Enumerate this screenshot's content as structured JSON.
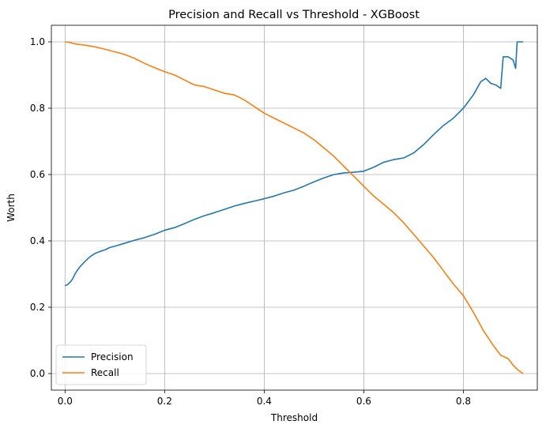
{
  "chart_data": {
    "type": "line",
    "title": "Precision and Recall vs Threshold - XGBoost",
    "xlabel": "Threshold",
    "ylabel": "Worth",
    "xlim": [
      -0.0275,
      0.9485
    ],
    "ylim": [
      -0.05,
      1.05
    ],
    "x_ticks": [
      0.0,
      0.2,
      0.4,
      0.6,
      0.8
    ],
    "x_tick_labels": [
      "0.0",
      "0.2",
      "0.4",
      "0.6",
      "0.8"
    ],
    "y_ticks": [
      0.0,
      0.2,
      0.4,
      0.6,
      0.8,
      1.0
    ],
    "y_tick_labels": [
      "0.0",
      "0.2",
      "0.4",
      "0.6",
      "0.8",
      "1.0"
    ],
    "grid": true,
    "legend_position": "lower-left",
    "series": [
      {
        "name": "Precision",
        "color": "#1f77b4",
        "points": [
          [
            0.0,
            0.265
          ],
          [
            0.005,
            0.268
          ],
          [
            0.01,
            0.275
          ],
          [
            0.015,
            0.285
          ],
          [
            0.02,
            0.3
          ],
          [
            0.025,
            0.312
          ],
          [
            0.03,
            0.322
          ],
          [
            0.04,
            0.338
          ],
          [
            0.05,
            0.352
          ],
          [
            0.06,
            0.362
          ],
          [
            0.07,
            0.368
          ],
          [
            0.08,
            0.373
          ],
          [
            0.09,
            0.38
          ],
          [
            0.1,
            0.384
          ],
          [
            0.12,
            0.393
          ],
          [
            0.14,
            0.402
          ],
          [
            0.16,
            0.41
          ],
          [
            0.18,
            0.42
          ],
          [
            0.2,
            0.432
          ],
          [
            0.22,
            0.44
          ],
          [
            0.24,
            0.452
          ],
          [
            0.26,
            0.465
          ],
          [
            0.28,
            0.476
          ],
          [
            0.3,
            0.485
          ],
          [
            0.32,
            0.495
          ],
          [
            0.34,
            0.505
          ],
          [
            0.36,
            0.513
          ],
          [
            0.38,
            0.52
          ],
          [
            0.4,
            0.527
          ],
          [
            0.42,
            0.535
          ],
          [
            0.44,
            0.545
          ],
          [
            0.46,
            0.553
          ],
          [
            0.48,
            0.565
          ],
          [
            0.5,
            0.578
          ],
          [
            0.52,
            0.59
          ],
          [
            0.54,
            0.6
          ],
          [
            0.56,
            0.605
          ],
          [
            0.58,
            0.607
          ],
          [
            0.6,
            0.61
          ],
          [
            0.62,
            0.622
          ],
          [
            0.64,
            0.637
          ],
          [
            0.66,
            0.645
          ],
          [
            0.68,
            0.65
          ],
          [
            0.7,
            0.665
          ],
          [
            0.72,
            0.69
          ],
          [
            0.74,
            0.72
          ],
          [
            0.76,
            0.748
          ],
          [
            0.78,
            0.77
          ],
          [
            0.8,
            0.8
          ],
          [
            0.82,
            0.84
          ],
          [
            0.835,
            0.88
          ],
          [
            0.845,
            0.89
          ],
          [
            0.855,
            0.875
          ],
          [
            0.865,
            0.87
          ],
          [
            0.875,
            0.86
          ],
          [
            0.88,
            0.955
          ],
          [
            0.89,
            0.955
          ],
          [
            0.9,
            0.945
          ],
          [
            0.905,
            0.92
          ],
          [
            0.908,
            1.0
          ],
          [
            0.92,
            1.0
          ]
        ]
      },
      {
        "name": "Recall",
        "color": "#ff7f0e",
        "points": [
          [
            0.0,
            1.0
          ],
          [
            0.01,
            0.998
          ],
          [
            0.02,
            0.994
          ],
          [
            0.04,
            0.99
          ],
          [
            0.06,
            0.985
          ],
          [
            0.08,
            0.978
          ],
          [
            0.1,
            0.97
          ],
          [
            0.12,
            0.962
          ],
          [
            0.14,
            0.95
          ],
          [
            0.16,
            0.935
          ],
          [
            0.18,
            0.922
          ],
          [
            0.2,
            0.91
          ],
          [
            0.22,
            0.9
          ],
          [
            0.24,
            0.885
          ],
          [
            0.26,
            0.87
          ],
          [
            0.28,
            0.865
          ],
          [
            0.3,
            0.855
          ],
          [
            0.32,
            0.845
          ],
          [
            0.34,
            0.84
          ],
          [
            0.36,
            0.825
          ],
          [
            0.38,
            0.805
          ],
          [
            0.4,
            0.785
          ],
          [
            0.42,
            0.77
          ],
          [
            0.44,
            0.755
          ],
          [
            0.46,
            0.74
          ],
          [
            0.48,
            0.725
          ],
          [
            0.5,
            0.705
          ],
          [
            0.52,
            0.68
          ],
          [
            0.54,
            0.655
          ],
          [
            0.56,
            0.625
          ],
          [
            0.58,
            0.595
          ],
          [
            0.6,
            0.565
          ],
          [
            0.62,
            0.535
          ],
          [
            0.64,
            0.51
          ],
          [
            0.66,
            0.485
          ],
          [
            0.68,
            0.455
          ],
          [
            0.7,
            0.42
          ],
          [
            0.72,
            0.385
          ],
          [
            0.74,
            0.35
          ],
          [
            0.76,
            0.31
          ],
          [
            0.78,
            0.27
          ],
          [
            0.8,
            0.235
          ],
          [
            0.82,
            0.185
          ],
          [
            0.84,
            0.13
          ],
          [
            0.86,
            0.085
          ],
          [
            0.875,
            0.055
          ],
          [
            0.89,
            0.045
          ],
          [
            0.9,
            0.025
          ],
          [
            0.91,
            0.01
          ],
          [
            0.92,
            0.0
          ]
        ]
      }
    ]
  }
}
